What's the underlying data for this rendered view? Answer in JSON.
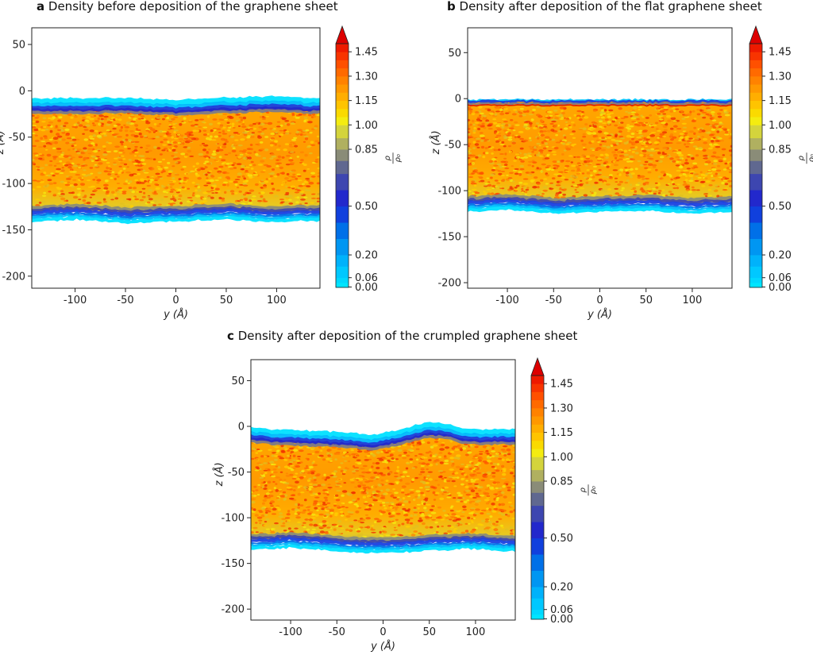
{
  "chart_data": [
    {
      "type": "heatmap",
      "panel_letter": "a",
      "title": "Density before deposition of the graphene sheet",
      "xlabel": "y (Å)",
      "ylabel": "z (Å)",
      "xlim": [
        -143,
        143
      ],
      "ylim": [
        -213,
        68
      ],
      "xticks": [
        -100,
        -50,
        0,
        50,
        100
      ],
      "yticks": [
        50,
        0,
        -50,
        -100,
        -150,
        -200
      ],
      "colorbar_label": "ρ/ρ₀",
      "top_surface": [
        [
          -143,
          -17
        ],
        [
          -100,
          -17
        ],
        [
          -50,
          -16
        ],
        [
          0,
          -19
        ],
        [
          50,
          -16
        ],
        [
          100,
          -15
        ],
        [
          143,
          -17
        ]
      ],
      "bottom_surface": [
        [
          -143,
          -130
        ],
        [
          -100,
          -128
        ],
        [
          -50,
          -132
        ],
        [
          0,
          -130
        ],
        [
          50,
          -128
        ],
        [
          100,
          -131
        ],
        [
          143,
          -129
        ]
      ],
      "graphene_sheet": "none"
    },
    {
      "type": "heatmap",
      "panel_letter": "b",
      "title": "Density after deposition of the flat graphene sheet",
      "xlabel": "y (Å)",
      "ylabel": "z (Å)",
      "xlim": [
        -143,
        143
      ],
      "ylim": [
        -206,
        77
      ],
      "xticks": [
        -100,
        -50,
        0,
        50,
        100
      ],
      "yticks": [
        50,
        0,
        -50,
        -100,
        -150,
        -200
      ],
      "colorbar_label": "ρ/ρ₀",
      "top_surface": [
        [
          -143,
          -3
        ],
        [
          -100,
          -3
        ],
        [
          -50,
          -3
        ],
        [
          0,
          -3
        ],
        [
          50,
          -3
        ],
        [
          100,
          -3
        ],
        [
          143,
          -3
        ]
      ],
      "bottom_surface": [
        [
          -143,
          -112
        ],
        [
          -100,
          -110
        ],
        [
          -50,
          -114
        ],
        [
          0,
          -112
        ],
        [
          50,
          -111
        ],
        [
          100,
          -114
        ],
        [
          143,
          -112
        ]
      ],
      "graphene_sheet": "flat"
    },
    {
      "type": "heatmap",
      "panel_letter": "c",
      "title": "Density after deposition of the crumpled graphene sheet",
      "xlabel": "y (Å)",
      "ylabel": "z (Å)",
      "xlim": [
        -143,
        143
      ],
      "ylim": [
        -212,
        73
      ],
      "xticks": [
        -100,
        -50,
        0,
        50,
        100
      ],
      "yticks": [
        50,
        0,
        -50,
        -100,
        -150,
        -200
      ],
      "colorbar_label": "ρ/ρ₀",
      "top_surface": [
        [
          -143,
          -10
        ],
        [
          -120,
          -12
        ],
        [
          -80,
          -14
        ],
        [
          -40,
          -15
        ],
        [
          -10,
          -18
        ],
        [
          20,
          -12
        ],
        [
          45,
          -5
        ],
        [
          65,
          -5
        ],
        [
          90,
          -12
        ],
        [
          115,
          -12
        ],
        [
          143,
          -12
        ]
      ],
      "bottom_surface": [
        [
          -143,
          -124
        ],
        [
          -100,
          -122
        ],
        [
          -50,
          -126
        ],
        [
          0,
          -128
        ],
        [
          50,
          -125
        ],
        [
          100,
          -123
        ],
        [
          143,
          -126
        ]
      ],
      "graphene_sheet": "crumpled"
    }
  ],
  "colorbar": {
    "tick_labels": [
      "1.45",
      "1.30",
      "1.15",
      "1.00",
      "0.85",
      "0.50",
      "0.20",
      "0.06",
      "0.00"
    ],
    "label_numerator": "ρ",
    "label_denominator": "ρ₀",
    "levels": [
      {
        "value": 0.0,
        "color": "#00e5ff"
      },
      {
        "value": 0.03,
        "color": "#00d8ff"
      },
      {
        "value": 0.06,
        "color": "#00c8ff"
      },
      {
        "value": 0.13,
        "color": "#00b2fb"
      },
      {
        "value": 0.2,
        "color": "#0096f2"
      },
      {
        "value": 0.3,
        "color": "#0070e8"
      },
      {
        "value": 0.4,
        "color": "#1040dd"
      },
      {
        "value": 0.5,
        "color": "#2228cc"
      },
      {
        "value": 0.6,
        "color": "#3d46b0"
      },
      {
        "value": 0.7,
        "color": "#606890"
      },
      {
        "value": 0.78,
        "color": "#8a8c78"
      },
      {
        "value": 0.85,
        "color": "#b0b060"
      },
      {
        "value": 0.92,
        "color": "#d4d43c"
      },
      {
        "value": 1.0,
        "color": "#f4ec10"
      },
      {
        "value": 1.05,
        "color": "#fada00"
      },
      {
        "value": 1.1,
        "color": "#ffc400"
      },
      {
        "value": 1.15,
        "color": "#ffae00"
      },
      {
        "value": 1.2,
        "color": "#ff9800"
      },
      {
        "value": 1.25,
        "color": "#ff8200"
      },
      {
        "value": 1.3,
        "color": "#ff6a00"
      },
      {
        "value": 1.35,
        "color": "#ff5000"
      },
      {
        "value": 1.4,
        "color": "#f83400"
      },
      {
        "value": 1.45,
        "color": "#ee1a00"
      },
      {
        "value": 1.5,
        "color": "#dd0000"
      }
    ],
    "extend": "max"
  }
}
